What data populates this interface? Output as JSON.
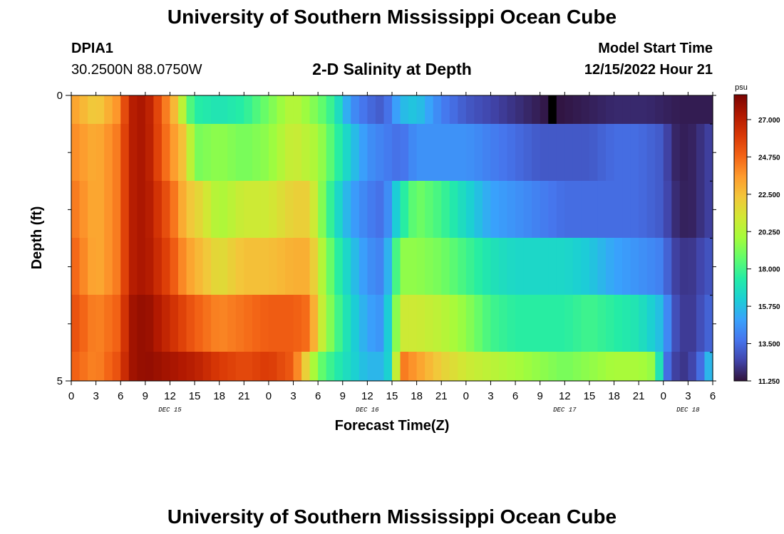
{
  "header": {
    "title": "University of Southern Mississippi Ocean Cube",
    "station": "DPIA1",
    "coordinates": "30.2500N  88.0750W",
    "chart_title": "2-D Salinity at Depth",
    "model_label": "Model Start Time",
    "model_time": "12/15/2022 Hour 21"
  },
  "footer": {
    "title": "University of Southern Mississippi Ocean Cube"
  },
  "colors": {
    "colormap": [
      "#30123b",
      "#4145ab",
      "#4675ed",
      "#39a2fc",
      "#1bcfd4",
      "#24eca6",
      "#61fc6c",
      "#a4fc3b",
      "#d1e834",
      "#f3c63a",
      "#fe9b2d",
      "#f36315",
      "#d93806",
      "#b11901",
      "#7a0402"
    ],
    "gap": "#000000"
  },
  "chart_data": {
    "type": "heatmap",
    "xlabel": "Forecast Time(Z)",
    "ylabel": "Depth (ft)",
    "x_tick_labels": [
      "0",
      "3",
      "6",
      "9",
      "12",
      "15",
      "18",
      "21",
      "0",
      "3",
      "6",
      "9",
      "12",
      "15",
      "18",
      "21",
      "0",
      "3",
      "6",
      "9",
      "12",
      "15",
      "18",
      "21",
      "0",
      "3",
      "6"
    ],
    "date_labels": [
      {
        "label": "DEC 15",
        "hour": 12
      },
      {
        "label": "DEC 16",
        "hour": 36
      },
      {
        "label": "DEC 17",
        "hour": 60
      },
      {
        "label": "DEC 18",
        "hour": 75
      }
    ],
    "x_range_hours": [
      0,
      78
    ],
    "y_tick_labels": [
      "0",
      "5"
    ],
    "ylim": [
      0,
      5
    ],
    "colorbar": {
      "unit": "psu",
      "labels": [
        "27.000",
        "24.750",
        "22.500",
        "20.250",
        "18.000",
        "15.750",
        "13.500",
        "11.250"
      ],
      "min": 11.25,
      "max": 28.5
    },
    "gap_hour": 58,
    "layer_depths_ft": [
      0,
      1,
      2,
      3,
      4,
      5
    ],
    "layers": [
      {
        "depth_ft": 0,
        "hours": [
          0,
          3,
          6,
          7,
          9,
          11,
          13,
          14,
          15,
          18,
          21,
          24,
          27,
          30,
          32,
          34,
          36,
          38,
          40,
          42,
          45,
          48,
          51,
          54,
          57,
          58,
          59,
          62,
          66,
          70,
          74,
          76,
          78
        ],
        "values": [
          23.5,
          22.0,
          24.0,
          27.0,
          27.5,
          25.0,
          22.0,
          19.0,
          17.5,
          17.0,
          17.5,
          19.0,
          20.5,
          19.0,
          17.5,
          14.5,
          13.5,
          13.0,
          15.5,
          16.0,
          14.0,
          13.0,
          12.5,
          12.0,
          11.5,
          11.3,
          11.3,
          11.5,
          11.8,
          11.8,
          11.5,
          11.5,
          11.5
        ]
      },
      {
        "depth_ft": 1,
        "hours": [
          0,
          3,
          6,
          7,
          9,
          12,
          14,
          15,
          18,
          21,
          24,
          27,
          30,
          32,
          34,
          36,
          38,
          40,
          42,
          45,
          48,
          51,
          54,
          57,
          60,
          63,
          66,
          69,
          72,
          73,
          75,
          78
        ],
        "values": [
          24.0,
          23.0,
          24.5,
          27.0,
          27.5,
          24.0,
          22.0,
          19.0,
          19.5,
          19.0,
          19.5,
          21.0,
          20.0,
          18.0,
          16.0,
          14.5,
          14.0,
          13.5,
          14.5,
          14.5,
          14.5,
          14.0,
          13.5,
          13.0,
          13.0,
          13.0,
          13.5,
          13.5,
          13.0,
          11.8,
          11.5,
          12.5
        ]
      },
      {
        "depth_ft": 2,
        "hours": [
          0,
          3,
          6,
          7,
          9,
          12,
          14,
          16,
          18,
          21,
          24,
          27,
          29,
          30,
          32,
          34,
          36,
          38,
          40,
          42,
          45,
          48,
          51,
          54,
          57,
          60,
          63,
          66,
          69,
          72,
          73,
          75,
          78
        ],
        "values": [
          24.5,
          23.0,
          24.5,
          27.0,
          27.5,
          25.0,
          22.5,
          21.5,
          20.0,
          21.0,
          21.0,
          22.0,
          22.0,
          20.0,
          17.0,
          15.0,
          14.0,
          13.5,
          17.0,
          19.0,
          18.0,
          16.5,
          15.0,
          14.5,
          14.0,
          13.5,
          13.5,
          13.5,
          13.5,
          13.0,
          12.0,
          11.5,
          12.5
        ]
      },
      {
        "depth_ft": 3,
        "hours": [
          0,
          3,
          6,
          7,
          9,
          12,
          14,
          16,
          18,
          21,
          24,
          27,
          29,
          30,
          32,
          34,
          36,
          38,
          40,
          42,
          45,
          48,
          51,
          54,
          57,
          60,
          63,
          66,
          69,
          72,
          73,
          75,
          78
        ],
        "values": [
          25.0,
          23.0,
          24.5,
          27.0,
          27.5,
          25.5,
          23.5,
          22.5,
          21.5,
          22.5,
          22.5,
          23.0,
          23.0,
          21.0,
          18.0,
          16.0,
          14.5,
          14.0,
          19.5,
          19.5,
          19.0,
          18.0,
          17.0,
          16.5,
          16.5,
          16.5,
          16.0,
          15.0,
          14.5,
          14.0,
          12.5,
          12.0,
          13.0
        ]
      },
      {
        "depth_ft": 4,
        "hours": [
          0,
          3,
          6,
          7,
          9,
          12,
          15,
          18,
          21,
          24,
          27,
          29,
          30,
          32,
          34,
          36,
          38,
          40,
          42,
          45,
          48,
          51,
          54,
          57,
          60,
          63,
          66,
          69,
          72,
          73,
          75,
          78
        ],
        "values": [
          25.5,
          24.0,
          25.0,
          27.5,
          28.0,
          26.5,
          25.0,
          24.0,
          24.5,
          25.0,
          25.0,
          24.5,
          21.5,
          18.5,
          16.5,
          15.0,
          14.5,
          21.0,
          21.0,
          20.5,
          19.5,
          18.0,
          17.5,
          17.5,
          17.5,
          18.0,
          17.5,
          17.0,
          15.5,
          13.0,
          12.0,
          13.5
        ]
      },
      {
        "depth_ft": 5,
        "hours": [
          0,
          3,
          6,
          7,
          9,
          12,
          15,
          18,
          21,
          24,
          27,
          28,
          29,
          30,
          32,
          34,
          36,
          38,
          39,
          40,
          42,
          45,
          48,
          51,
          54,
          57,
          60,
          63,
          66,
          69,
          71,
          72,
          73,
          75,
          77,
          78
        ],
        "values": [
          25.0,
          24.0,
          25.5,
          27.5,
          28.0,
          27.5,
          27.0,
          26.0,
          25.5,
          26.0,
          25.0,
          23.0,
          21.0,
          19.0,
          17.5,
          16.5,
          15.5,
          15.5,
          17.0,
          24.5,
          23.5,
          22.0,
          21.0,
          20.5,
          20.0,
          19.5,
          19.0,
          19.5,
          20.0,
          20.0,
          19.5,
          14.5,
          12.5,
          12.0,
          14.0,
          17.0
        ]
      }
    ]
  }
}
